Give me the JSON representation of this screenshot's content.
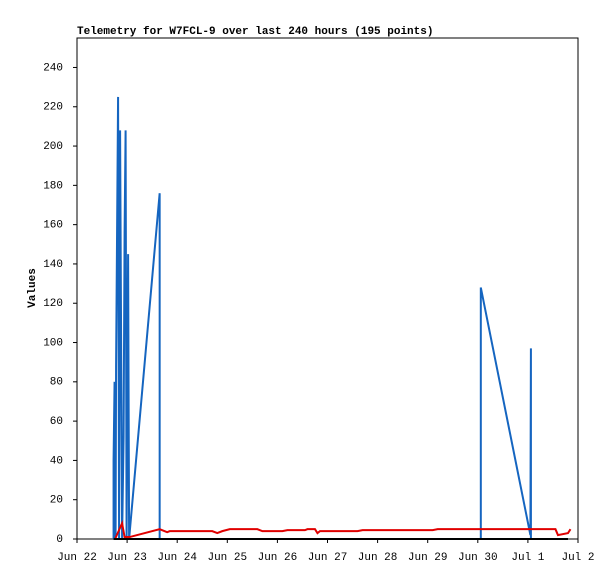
{
  "chart_data": {
    "type": "line",
    "title": "Telemetry for W7FCL-9 over last 240 hours (195 points)",
    "y_label": "Values",
    "xlim": [
      0,
      10
    ],
    "ylim": [
      0,
      255
    ],
    "xticks": [
      {
        "value": 0,
        "label": "Jun 22"
      },
      {
        "value": 1,
        "label": "Jun 23"
      },
      {
        "value": 2,
        "label": "Jun 24"
      },
      {
        "value": 3,
        "label": "Jun 25"
      },
      {
        "value": 4,
        "label": "Jun 26"
      },
      {
        "value": 5,
        "label": "Jun 27"
      },
      {
        "value": 6,
        "label": "Jun 28"
      },
      {
        "value": 7,
        "label": "Jun 29"
      },
      {
        "value": 8,
        "label": "Jun 30"
      },
      {
        "value": 9,
        "label": "Jul 1"
      },
      {
        "value": 10,
        "label": "Jul 2"
      }
    ],
    "yticks": [
      0,
      20,
      40,
      60,
      80,
      100,
      120,
      140,
      160,
      180,
      200,
      220,
      240
    ],
    "series": [
      {
        "color": "#1565c0",
        "x": [
          0.73,
          0.73,
          0.75,
          0.77,
          0.78,
          0.82,
          0.84,
          0.86,
          0.88,
          0.9,
          0.93,
          0.95,
          0.97,
          0.99,
          1.02,
          1.04,
          1.65,
          1.65,
          8.06,
          8.06,
          9.05,
          9.06,
          9.06
        ],
        "values": [
          0,
          40,
          80,
          0,
          88,
          225,
          0,
          208,
          104,
          0,
          52,
          156,
          208,
          0,
          145,
          0,
          176,
          0,
          0,
          128,
          2,
          97,
          0
        ]
      },
      {
        "color": "#e00000",
        "x": [
          0.76,
          0.9,
          0.95,
          1.05,
          1.65,
          1.75,
          1.8,
          1.85,
          2.7,
          2.8,
          2.9,
          3.05,
          3.6,
          3.7,
          4.1,
          4.2,
          4.55,
          4.6,
          4.75,
          4.8,
          4.85,
          5.6,
          5.7,
          7.1,
          7.2,
          9.55,
          9.6,
          9.8,
          9.85
        ],
        "values": [
          0,
          8,
          1,
          1,
          5,
          4,
          3.5,
          4,
          4,
          3,
          4,
          5,
          5,
          4,
          4,
          4.5,
          4.5,
          5,
          5,
          3,
          4,
          4,
          4.5,
          4.5,
          5,
          5,
          2,
          3,
          5
        ]
      },
      {
        "color": "#000000",
        "x": [
          0.73,
          9.8
        ],
        "values": [
          0,
          0
        ]
      }
    ]
  }
}
